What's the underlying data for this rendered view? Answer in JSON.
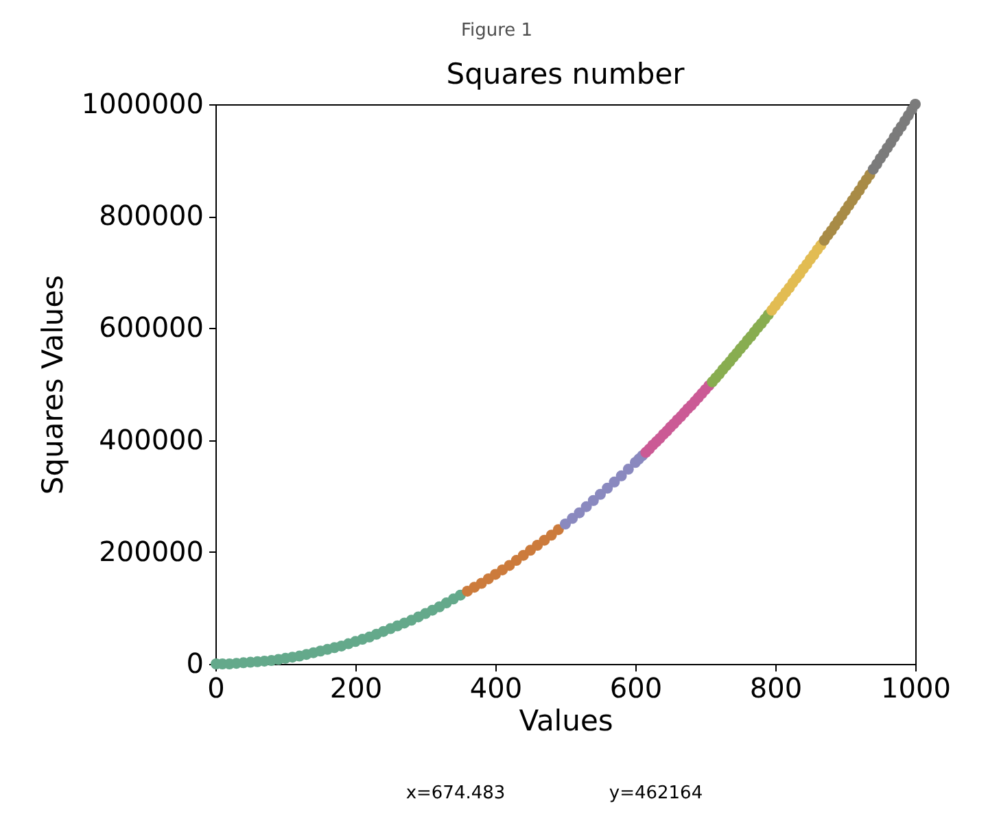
{
  "chart_data": {
    "type": "scatter",
    "title": "Squares number",
    "xlabel": "Values",
    "ylabel": "Squares Values",
    "annotations": [
      "Figure 1",
      "x=674.483",
      "y=462164"
    ],
    "xlim": [
      0,
      1000
    ],
    "xticks": [
      0,
      200,
      400,
      600,
      800,
      1000
    ],
    "ylim": [
      0,
      1000000
    ],
    "yticks": [
      0,
      200000,
      400000,
      600000,
      800000,
      1000000
    ],
    "marker": "circle",
    "series": [
      {
        "color": "#64a98b",
        "x": [
          1,
          10,
          20,
          30,
          40,
          50,
          60,
          70,
          80,
          90,
          100,
          110,
          120,
          130,
          140,
          150,
          160,
          170,
          180,
          190,
          200,
          210,
          220,
          230,
          240,
          250,
          260,
          270,
          280,
          290,
          300,
          310,
          320,
          330,
          340,
          350
        ],
        "values": [
          0,
          0,
          0,
          1000,
          2000,
          3000,
          4000,
          5000,
          6000,
          8000,
          10000,
          12000,
          14000,
          17000,
          20000,
          23000,
          26000,
          29000,
          32000,
          36000,
          40000,
          44000,
          48000,
          53000,
          58000,
          63000,
          68000,
          73000,
          78000,
          84000,
          90000,
          96000,
          102000,
          109000,
          116000,
          123000
        ]
      },
      {
        "color": "#cc7b3c",
        "x": [
          360,
          370,
          380,
          390,
          400,
          410,
          420,
          430,
          440,
          450,
          460,
          470,
          480,
          490
        ],
        "values": [
          130000,
          137000,
          144000,
          152000,
          160000,
          168000,
          176000,
          185000,
          194000,
          203000,
          212000,
          221000,
          230000,
          240000
        ]
      },
      {
        "color": "#8a89bf",
        "x": [
          500,
          510,
          520,
          530,
          540,
          550,
          560,
          570,
          580,
          590,
          600,
          605,
          610
        ],
        "values": [
          250000,
          260000,
          270000,
          281000,
          292000,
          303000,
          314000,
          325000,
          336000,
          348000,
          360000,
          366000,
          372000
        ]
      },
      {
        "color": "#cb5a95",
        "x": [
          615,
          620,
          625,
          630,
          635,
          640,
          645,
          650,
          655,
          660,
          665,
          670,
          675,
          680,
          685,
          690,
          695,
          700,
          705
        ],
        "values": [
          378000,
          384000,
          391000,
          397000,
          403000,
          410000,
          416000,
          423000,
          429000,
          436000,
          442000,
          449000,
          456000,
          462000,
          469000,
          476000,
          483000,
          490000,
          497000
        ]
      },
      {
        "color": "#88ad50",
        "x": [
          710,
          715,
          720,
          725,
          730,
          735,
          740,
          745,
          750,
          755,
          760,
          765,
          770,
          775,
          780,
          785,
          790
        ],
        "values": [
          504000,
          511000,
          518000,
          526000,
          533000,
          540000,
          548000,
          555000,
          563000,
          570000,
          578000,
          585000,
          593000,
          601000,
          608000,
          616000,
          624000
        ]
      },
      {
        "color": "#e2bc52",
        "x": [
          795,
          800,
          805,
          810,
          815,
          820,
          825,
          830,
          835,
          840,
          845,
          850,
          855,
          860,
          865
        ],
        "values": [
          632000,
          640000,
          648000,
          656000,
          664000,
          672000,
          681000,
          689000,
          697000,
          706000,
          714000,
          723000,
          731000,
          740000,
          748000
        ]
      },
      {
        "color": "#a88b46",
        "x": [
          870,
          875,
          880,
          885,
          890,
          895,
          900,
          905,
          910,
          915,
          920,
          925,
          930,
          935
        ],
        "values": [
          757000,
          766000,
          774000,
          783000,
          792000,
          801000,
          810000,
          819000,
          828000,
          837000,
          846000,
          856000,
          865000,
          874000
        ]
      },
      {
        "color": "#7b7b7b",
        "x": [
          940,
          945,
          950,
          955,
          960,
          965,
          970,
          975,
          980,
          985,
          990,
          995,
          1000
        ],
        "values": [
          884000,
          893000,
          903000,
          912000,
          922000,
          931000,
          941000,
          951000,
          960000,
          970000,
          980000,
          990000,
          1000000
        ]
      }
    ]
  }
}
